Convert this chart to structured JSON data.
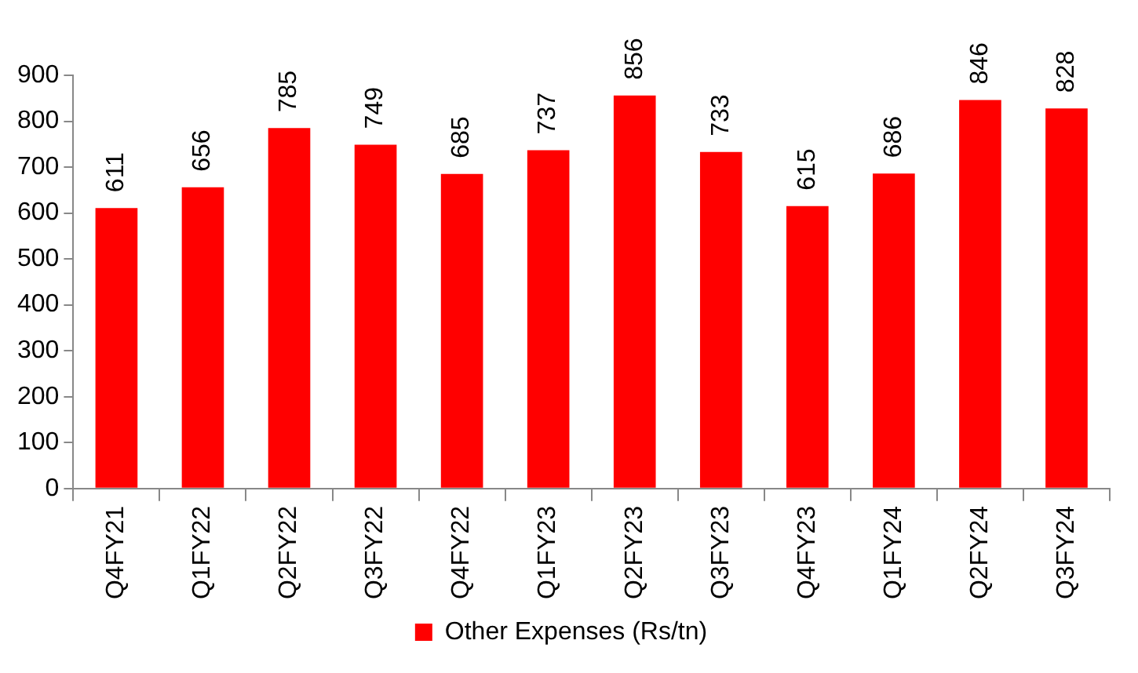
{
  "chart_data": {
    "type": "bar",
    "categories": [
      "Q4FY21",
      "Q1FY22",
      "Q2FY22",
      "Q3FY22",
      "Q4FY22",
      "Q1FY23",
      "Q2FY23",
      "Q3FY23",
      "Q4FY23",
      "Q1FY24",
      "Q2FY24",
      "Q3FY24"
    ],
    "series": [
      {
        "name": "Other Expenses (Rs/tn)",
        "color": "#ff0000",
        "values": [
          611,
          656,
          785,
          749,
          685,
          737,
          856,
          733,
          615,
          686,
          846,
          828
        ]
      }
    ],
    "ylim": [
      0,
      900
    ],
    "yticks": [
      0,
      100,
      200,
      300,
      400,
      500,
      600,
      700,
      800,
      900
    ],
    "data_labels": true,
    "legend": "bottom"
  }
}
